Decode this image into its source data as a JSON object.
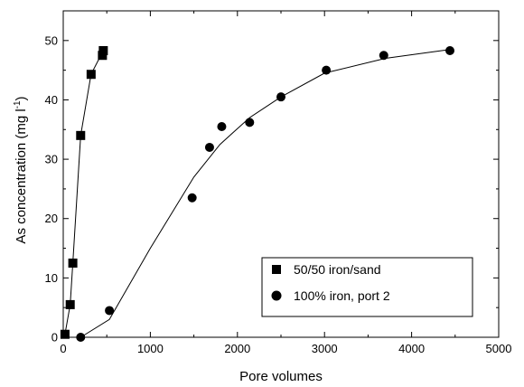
{
  "chart_data": {
    "type": "scatter",
    "title": "",
    "xlabel": "Pore volumes",
    "ylabel_main": "As concentration (mg l",
    "ylabel_sup": "-1",
    "ylabel_close": ")",
    "xlim": [
      0,
      5000
    ],
    "ylim": [
      0,
      55
    ],
    "x_ticks": [
      0,
      1000,
      2000,
      3000,
      4000,
      5000
    ],
    "y_ticks": [
      0,
      10,
      20,
      30,
      40,
      50
    ],
    "grid": false,
    "legend_position": "bottom-right",
    "series": [
      {
        "name": "50/50 iron/sand",
        "marker": "square",
        "points": [
          [
            20,
            0.5
          ],
          [
            80,
            5.5
          ],
          [
            110,
            12.5
          ],
          [
            200,
            34
          ],
          [
            320,
            44.3
          ],
          [
            450,
            47.5
          ],
          [
            460,
            48.3
          ]
        ],
        "fit_line": [
          [
            0,
            0
          ],
          [
            20,
            0.5
          ],
          [
            80,
            5.5
          ],
          [
            110,
            12.5
          ],
          [
            200,
            34
          ],
          [
            320,
            44.3
          ],
          [
            460,
            48.3
          ]
        ]
      },
      {
        "name": "100% iron, port 2",
        "marker": "circle",
        "points": [
          [
            200,
            0
          ],
          [
            530,
            4.5
          ],
          [
            1480,
            23.5
          ],
          [
            1680,
            32
          ],
          [
            1820,
            35.5
          ],
          [
            2140,
            36.2
          ],
          [
            2500,
            40.5
          ],
          [
            3020,
            45
          ],
          [
            3680,
            47.5
          ],
          [
            4440,
            48.3
          ]
        ],
        "fit_line": [
          [
            200,
            0
          ],
          [
            530,
            3
          ],
          [
            1000,
            15
          ],
          [
            1500,
            27
          ],
          [
            1800,
            32.5
          ],
          [
            2140,
            37
          ],
          [
            2500,
            40.5
          ],
          [
            3000,
            44.5
          ],
          [
            3700,
            47
          ],
          [
            4440,
            48.5
          ]
        ]
      }
    ]
  }
}
